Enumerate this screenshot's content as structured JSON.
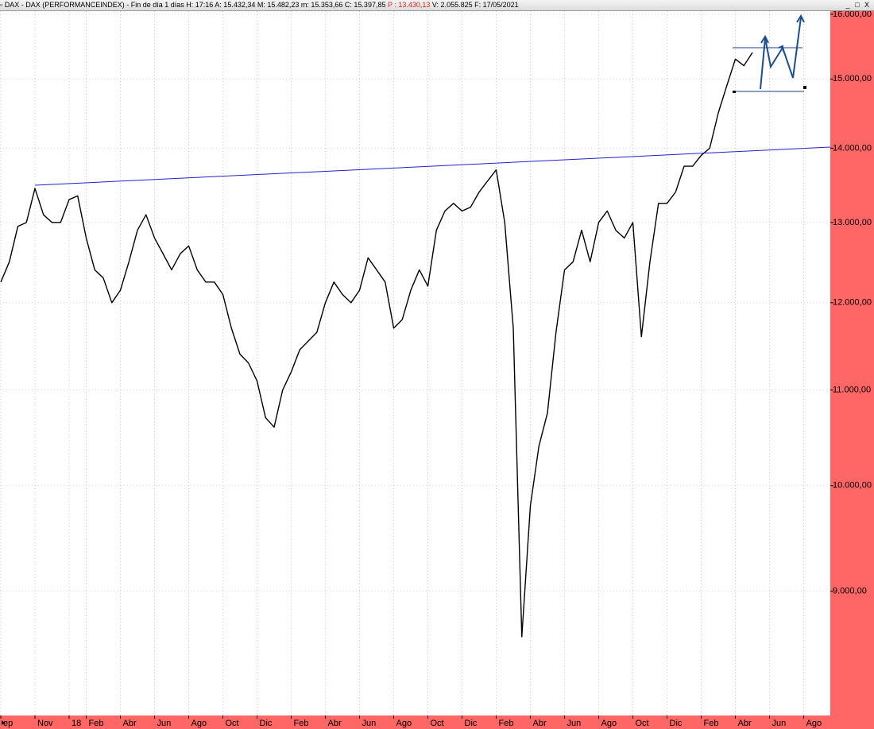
{
  "header": {
    "title": "DAX - DAX (PERFORMANCEINDEX) - Fin de día 1 días",
    "info": "H: 17:16  A: 15.432,34  M: 15.482,23  m: 15.353,66  C: 15.397,85",
    "p_value": "P : 13.430,13",
    "info2": "V: 2.055.825  F: 17/05/2021"
  },
  "chart_data": {
    "type": "line",
    "yscale": "log",
    "grid": true,
    "color": "#000000",
    "axis_color": "#ff6666",
    "categories": [
      "ep",
      null,
      null,
      null,
      "Nov",
      null,
      null,
      null,
      "18",
      null,
      "Feb",
      null,
      null,
      null,
      "Abr",
      null,
      null,
      null,
      "Jun",
      null,
      null,
      null,
      "Ago",
      null,
      null,
      null,
      "Oct",
      null,
      null,
      null,
      "Dic",
      null,
      null,
      null,
      "Feb",
      null,
      null,
      null,
      "Abr",
      null,
      null,
      null,
      "Jun",
      null,
      null,
      null,
      "Ago",
      null,
      null,
      null,
      "Oct",
      null,
      null,
      null,
      "Dic",
      null,
      null,
      null,
      "Feb",
      null,
      null,
      null,
      "Abr",
      null,
      null,
      null,
      "Jun",
      null,
      null,
      null,
      "Ago",
      null,
      null,
      null,
      "Oct",
      null,
      null,
      null,
      "Dic",
      null,
      null,
      null,
      "Feb",
      null,
      null,
      null,
      "Abr",
      null,
      null,
      null,
      "Jun",
      null,
      null,
      null,
      "Ago"
    ],
    "values": [
      12250,
      12500,
      12950,
      13000,
      13450,
      13100,
      13000,
      13000,
      13300,
      13350,
      12800,
      12400,
      12300,
      12000,
      12150,
      12500,
      12900,
      13100,
      12800,
      12600,
      12400,
      12600,
      12700,
      12400,
      12250,
      12250,
      12100,
      11700,
      11400,
      11300,
      11100,
      10700,
      10600,
      11000,
      11200,
      11450,
      11550,
      11650,
      12000,
      12250,
      12100,
      12000,
      12150,
      12550,
      12400,
      12250,
      11700,
      11800,
      12150,
      12400,
      12200,
      12900,
      13150,
      13250,
      13150,
      13200,
      13400,
      13550,
      13700,
      13000,
      11700,
      8600,
      9800,
      10400,
      10750,
      11650,
      12400,
      12500,
      12900,
      12500,
      13000,
      13150,
      12900,
      12800,
      13000,
      11600,
      12500,
      13250,
      13250,
      13400,
      13750,
      13750,
      13900,
      14000,
      14500,
      14900,
      15300,
      15200,
      15400,
      null,
      null,
      null,
      null,
      null,
      null
    ],
    "ylim": [
      7970,
      16050
    ],
    "yticks": [
      {
        "value": 9000,
        "label": "9.000,00"
      },
      {
        "value": 10000,
        "label": "10.000,00"
      },
      {
        "value": 11000,
        "label": "11.000,00"
      },
      {
        "value": 12000,
        "label": "12.000,00"
      },
      {
        "value": 13000,
        "label": "13.000,00"
      },
      {
        "value": 14000,
        "label": "14.000,00"
      },
      {
        "value": 15000,
        "label": "15.000,00"
      },
      {
        "value": 16000,
        "label": "16.000,00"
      }
    ]
  }
}
